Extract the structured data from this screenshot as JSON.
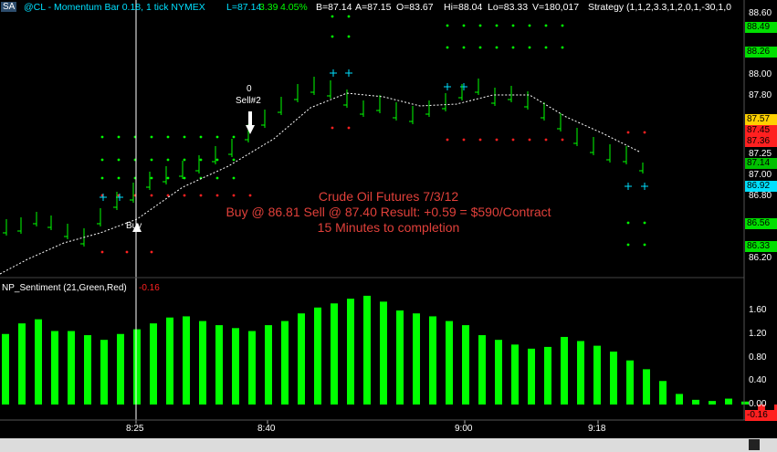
{
  "header": {
    "symbol_tag": "SA",
    "title": "@CL - Momentum Bar 0.18, 1 tick  NYMEX",
    "last": "L=87.14",
    "change": "3.39",
    "pct": "4.05%",
    "bid": "B=87.14",
    "ask": "A=87.15",
    "open": "O=83.67",
    "high": "Hi=88.04",
    "low": "Lo=83.33",
    "volume": "V=180,017",
    "strategy": "Strategy (1,1,2,3.3,1,2,0,1,-30,1,0"
  },
  "annotations": {
    "line1": "Crude Oil Futures 7/3/12",
    "line2": "Buy @ 86.81 Sell @ 87.40 Result: +0.59 = $590/Contract",
    "line3": "15 Minutes to completion",
    "buy_label": "Buy",
    "sell_count": "0",
    "sell_label": "Sell#2"
  },
  "price_axis": {
    "ticks": [
      "88.60",
      "88.00",
      "87.80",
      "87.25",
      "87.00",
      "86.80",
      "86.20"
    ],
    "badges": [
      {
        "text": "88.49",
        "color": "#00e000"
      },
      {
        "text": "88.26",
        "color": "#00e000"
      },
      {
        "text": "87.57",
        "color": "#ffd000"
      },
      {
        "text": "87.45",
        "color": "#ff2020"
      },
      {
        "text": "87.36",
        "color": "#ff2020"
      },
      {
        "text": "87.14",
        "color": "#00c000"
      },
      {
        "text": "86.92",
        "color": "#00e0ff"
      },
      {
        "text": "86.56",
        "color": "#00e000"
      },
      {
        "text": "86.33",
        "color": "#00e000"
      }
    ]
  },
  "indicator": {
    "title": "NP_Sentiment (21,Green,Red)",
    "value": "-0.16",
    "ticks": [
      "1.60",
      "1.20",
      "0.80",
      "0.40",
      "0.00"
    ],
    "last_badge": "-0.16",
    "last_badge_color": "#ff2020",
    "chart_data": {
      "type": "bar",
      "ylim": [
        -0.2,
        1.9
      ],
      "values": [
        1.2,
        1.38,
        1.45,
        1.25,
        1.25,
        1.18,
        1.1,
        1.2,
        1.28,
        1.38,
        1.48,
        1.5,
        1.42,
        1.35,
        1.3,
        1.25,
        1.35,
        1.42,
        1.55,
        1.65,
        1.72,
        1.8,
        1.85,
        1.75,
        1.6,
        1.55,
        1.5,
        1.42,
        1.35,
        1.18,
        1.1,
        1.02,
        0.95,
        0.98,
        1.15,
        1.08,
        1.0,
        0.9,
        0.75,
        0.6,
        0.4,
        0.18,
        0.08,
        0.06,
        0.1,
        0.05,
        -0.12,
        -0.16
      ]
    }
  },
  "time_axis": {
    "labels": [
      "8:25",
      "8:40",
      "9:00",
      "9:18"
    ]
  },
  "colors": {
    "green": "#00ff00",
    "red": "#ff2020",
    "cyan": "#00e0ff"
  }
}
